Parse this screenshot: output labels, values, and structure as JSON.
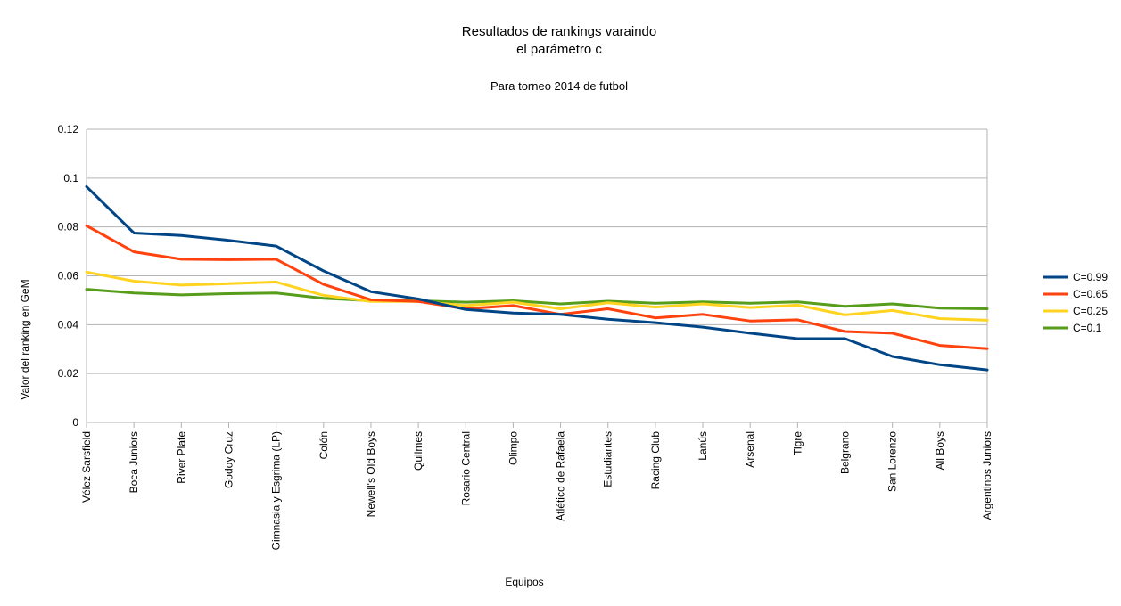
{
  "chart_data": {
    "type": "line",
    "title_lines": [
      "Resultados de rankings varaindo",
      "el parámetro c"
    ],
    "subtitle": "Para torneo 2014 de futbol",
    "xlabel": "Equipos",
    "ylabel": "Valor del ranking en GeM",
    "ylim": [
      0,
      0.12
    ],
    "yticks": [
      "0",
      "0.02",
      "0.04",
      "0.06",
      "0.08",
      "0.1",
      "0.12"
    ],
    "grid": true,
    "legend_position": "right",
    "categories": [
      "Vélez Sarsfield",
      "Boca Juniors",
      "River Plate",
      "Godoy Cruz",
      "Gimnasia y Esgrima (LP)",
      "Colón",
      "Newell's Old Boys",
      "Quilmes",
      "Rosario Central",
      "Olimpo",
      "Atlético de Rafaela",
      "Estudiantes",
      "Racing Club",
      "Lanús",
      "Arsenal",
      "Tigre",
      "Belgrano",
      "San Lorenzo",
      "All Boys",
      "Argentinos Juniors"
    ],
    "series": [
      {
        "name": "C=0.99",
        "color": "#004586",
        "values": [
          0.0965,
          0.0775,
          0.0765,
          0.0745,
          0.0722,
          0.062,
          0.0535,
          0.0505,
          0.0462,
          0.0448,
          0.0442,
          0.0422,
          0.0408,
          0.039,
          0.0365,
          0.0343,
          0.0343,
          0.027,
          0.0236,
          0.0215
        ]
      },
      {
        "name": "C=0.65",
        "color": "#ff420e",
        "values": [
          0.0805,
          0.0698,
          0.0668,
          0.0666,
          0.0668,
          0.0565,
          0.0502,
          0.0495,
          0.0465,
          0.0478,
          0.0442,
          0.0465,
          0.0428,
          0.0442,
          0.0415,
          0.042,
          0.0372,
          0.0365,
          0.0315,
          0.0302
        ]
      },
      {
        "name": "C=0.25",
        "color": "#ffd320",
        "values": [
          0.0615,
          0.0578,
          0.0562,
          0.0568,
          0.0575,
          0.052,
          0.0495,
          0.0495,
          0.0478,
          0.0492,
          0.0465,
          0.049,
          0.0472,
          0.0485,
          0.047,
          0.048,
          0.044,
          0.0458,
          0.0425,
          0.0418
        ]
      },
      {
        "name": "C=0.1",
        "color": "#579d1c",
        "values": [
          0.0545,
          0.053,
          0.0522,
          0.0527,
          0.053,
          0.0508,
          0.0498,
          0.0498,
          0.0492,
          0.0498,
          0.0485,
          0.0496,
          0.0488,
          0.0493,
          0.0488,
          0.0493,
          0.0475,
          0.0485,
          0.0468,
          0.0465
        ]
      }
    ]
  }
}
